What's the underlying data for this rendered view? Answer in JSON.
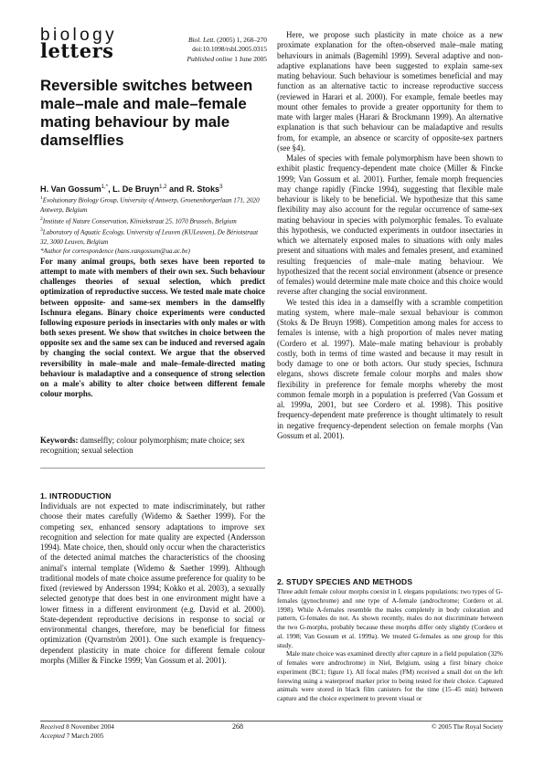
{
  "journal": {
    "logo_top": "biology",
    "logo_bottom": "letters",
    "citation_journal": "Biol. Lett.",
    "citation_rest": " (2005) 1, 268–270",
    "doi": "doi:10.1098/rsbl.2005.0315",
    "published_label": "Published online",
    "published_date": " 1 June 2005"
  },
  "article": {
    "title": "Reversible switches between male–male and male–female mating behaviour by male damselflies",
    "authors": [
      {
        "name": "H. Van Gossum",
        "sup": "1,*"
      },
      {
        "name": ", L. De Bruyn",
        "sup": "1,2"
      },
      {
        "name": " and R. Stoks",
        "sup": "3"
      }
    ],
    "affiliations": [
      {
        "sup": "1",
        "text": "Evolutionary Biology Group, University of Antwerp, Groenenborgerlaan 171, 2020 Antwerp, Belgium"
      },
      {
        "sup": "2",
        "text": "Institute of Nature Conservation, Kliniekstraat 25, 1070 Brussels, Belgium"
      },
      {
        "sup": "3",
        "text": "Laboratory of Aquatic Ecology, University of Leuven (KULeuven), De Bériotstraat 32, 3000 Leuven, Belgium"
      },
      {
        "sup": "",
        "text": "*Author for correspondence (hans.vangossum@ua.ac.be)"
      }
    ],
    "abstract": "For many animal groups, both sexes have been reported to attempt to mate with members of their own sex. Such behaviour challenges theories of sexual selection, which predict optimization of reproductive success. We tested male mate choice between opposite- and same-sex members in the damselfly Ischnura elegans. Binary choice experiments were conducted following exposure periods in insectaries with only males or with both sexes present. We show that switches in choice between the opposite sex and the same sex can be induced and reversed again by changing the social context. We argue that the observed reversibility in male–male and male–female-directed mating behaviour is maladaptive and a consequence of strong selection on a male's ability to alter choice between different female colour morphs.",
    "keywords_label": "Keywords:",
    "keywords": " damselfly; colour polymorphism; mate choice; sex recognition; sexual selection"
  },
  "sections": {
    "intro_heading": "1. INTRODUCTION",
    "intro_text": "Individuals are not expected to mate indiscriminately, but rather choose their mates carefully (Widemo & Saether 1999). For the competing sex, enhanced sensory adaptations to improve sex recognition and selection for mate quality are expected (Andersson 1994). Mate choice, then, should only occur when the characteristics of the detected animal matches the characteristics of the choosing animal's internal template (Widemo & Saether 1999). Although traditional models of mate choice assume preference for quality to be fixed (reviewed by Andersson 1994; Kokko et al. 2003), a sexually selected genotype that does best in one environment might have a lower fitness in a different environment (e.g. David et al. 2000). State-dependent reproductive decisions in response to social or environmental changes, therefore, may be beneficial for fitness optimization (Qvarnström 2001). One such example is frequency-dependent plasticity in mate choice for different female colour morphs (Miller & Fincke 1999; Van Gossum et al. 2001).",
    "right_p1": "Here, we propose such plasticity in mate choice as a new proximate explanation for the often-observed male–male mating behaviours in animals (Bagemihl 1999). Several adaptive and non-adaptive explanations have been suggested to explain same-sex mating behaviour. Such behaviour is sometimes beneficial and may function as an alternative tactic to increase reproductive success (reviewed in Harari et al. 2000). For example, female beetles may mount other females to provide a greater opportunity for them to mate with larger males (Harari & Brockmann 1999). An alternative explanation is that such behaviour can be maladaptive and results from, for example, an absence or scarcity of opposite-sex partners (see §4).",
    "right_p2": "Males of species with female polymorphism have been shown to exhibit plastic frequency-dependent mate choice (Miller & Fincke 1999; Van Gossum et al. 2001). Further, female morph frequencies may change rapidly (Fincke 1994), suggesting that flexible male behaviour is likely to be beneficial. We hypothesize that this same flexibility may also account for the regular occurrence of same-sex mating behaviour in species with polymorphic females. To evaluate this hypothesis, we conducted experiments in outdoor insectaries in which we alternately exposed males to situations with only males present and situations with males and females present, and examined resulting frequencies of male–male mating behaviour. We hypothesized that the recent social environment (absence or presence of females) would determine male mate choice and this choice would reverse after changing the social environment.",
    "right_p3": "We tested this idea in a damselfly with a scramble competition mating system, where male–male sexual behaviour is common (Stoks & De Bruyn 1998). Competition among males for access to females is intense, with a high proportion of males never mating (Cordero et al. 1997). Male–male mating behaviour is probably costly, both in terms of time wasted and because it may result in body damage to one or both actors. Our study species, Ischnura elegans, shows discrete female colour morphs and males show flexibility in preference for female morphs whereby the most common female morph in a population is preferred (Van Gossum et al. 1999a, 2001, but see Cordero et al. 1998). This positive frequency-dependent mate preference is thought ultimately to result in negative frequency-dependent selection on female morphs (Van Gossum et al. 2001).",
    "methods_heading": "2. STUDY SPECIES AND METHODS",
    "methods_p1": "Three adult female colour morphs coexist in I. elegans populations: two types of G-females (gynochrome) and one type of A-female (androchrome; Cordero et al. 1998). While A-females resemble the males completely in body coloration and pattern, G-females do not. As shown recently, males do not discriminate between the two G-morphs, probably because these morphs differ only slightly (Cordero et al. 1998; Van Gossum et al. 1999a). We treated G-females as one group for this study.",
    "methods_p2": "Male mate choice was examined directly after capture in a field population (32% of females were androchrome) in Niel, Belgium, using a first binary choice experiment (BC1; figure 1). All focal males (FM) received a small dot on the left forewing using a waterproof marker prior to being tested for their choice. Captured animals were stored in black film canisters for the time (15–45 min) between capture and the choice experiment to prevent visual or"
  },
  "footer": {
    "received_label": "Received",
    "received": " 8 November 2004",
    "accepted_label": "Accepted",
    "accepted": " 7 March 2005",
    "page": "268",
    "copyright": "© 2005 The Royal Society"
  }
}
